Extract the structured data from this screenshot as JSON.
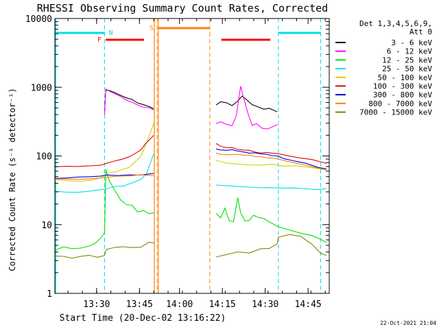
{
  "chart_data": {
    "type": "line",
    "title": "RHESSI Observing Summary Count Rates, Corrected",
    "xlabel": "Start Time (20-Dec-02 13:16:22)",
    "ylabel": "Corrected Count Rate (s⁻¹ detector⁻¹)",
    "yscale": "log",
    "ylim": [
      1,
      10000
    ],
    "xlim_minutes": [
      0,
      96
    ],
    "x_units": "minutes after 13:16:22",
    "yticks": [
      {
        "value": 1,
        "label": "1"
      },
      {
        "value": 10,
        "label": "10"
      },
      {
        "value": 100,
        "label": "100"
      },
      {
        "value": 1000,
        "label": "1000"
      },
      {
        "value": 10000,
        "label": "10000"
      }
    ],
    "xticks": [
      {
        "value": 14.6,
        "label": "13:30"
      },
      {
        "value": 29.6,
        "label": "13:45"
      },
      {
        "value": 43.6,
        "label": "14:00"
      },
      {
        "value": 58.6,
        "label": "14:15"
      },
      {
        "value": 73.6,
        "label": "14:30"
      },
      {
        "value": 88.6,
        "label": "14:45"
      }
    ],
    "legend": {
      "position": "top-right",
      "header": [
        "Det 1,3,4,5,6,9,",
        "Att 0"
      ],
      "entries": [
        {
          "label": "3 - 6 keV",
          "color": "#000000"
        },
        {
          "label": "6 - 12 keV",
          "color": "#ff00ff"
        },
        {
          "label": "12 - 25 keV",
          "color": "#00e000"
        },
        {
          "label": "25 - 50 keV",
          "color": "#00e0e0"
        },
        {
          "label": "50 - 100 keV",
          "color": "#d0d000"
        },
        {
          "label": "100 - 300 keV",
          "color": "#e00000"
        },
        {
          "label": "300 - 800 keV",
          "color": "#0000e0"
        },
        {
          "label": "800 - 7000 keV",
          "color": "#ff8000"
        },
        {
          "label": "7000 - 15000 keV",
          "color": "#808000"
        }
      ]
    },
    "annotations": {
      "N_label": "N",
      "F_label": "F",
      "S_label": "S",
      "night_bars": [
        [
          0,
          17.4
        ],
        [
          78.2,
          93.0
        ]
      ],
      "flare_bars": [
        [
          17.8,
          31.2
        ],
        [
          58.2,
          75.4
        ]
      ],
      "saa_bars": [
        [
          36.2,
          54.2
        ]
      ],
      "night_lines": [
        17.4,
        78.2,
        93.0
      ],
      "saa_lines": [
        35.8,
        54.2
      ],
      "saa_solid": [
        34.8,
        36.2
      ],
      "night_color": "#00e0e0",
      "flare_color": "#ff0000",
      "saa_color": "#ff8000"
    },
    "series": [
      {
        "name": "3 - 6 keV",
        "color": "#000000",
        "points": [
          [
            17.4,
            450
          ],
          [
            17.8,
            900
          ],
          [
            19,
            880
          ],
          [
            21,
            820
          ],
          [
            23,
            760
          ],
          [
            25,
            700
          ],
          [
            27,
            650
          ],
          [
            29,
            600
          ],
          [
            31,
            560
          ],
          [
            33,
            520
          ],
          [
            34.6,
            480
          ],
          [
            56.4,
            560
          ],
          [
            58,
            620
          ],
          [
            60,
            580
          ],
          [
            62,
            540
          ],
          [
            64,
            620
          ],
          [
            65.5,
            750
          ],
          [
            67,
            650
          ],
          [
            69,
            560
          ],
          [
            71,
            520
          ],
          [
            73,
            470
          ],
          [
            75,
            480
          ],
          [
            77.8,
            450
          ]
        ]
      },
      {
        "name": "6 - 12 keV",
        "color": "#ff00ff",
        "points": [
          [
            17.4,
            400
          ],
          [
            17.8,
            920
          ],
          [
            19,
            870
          ],
          [
            21,
            800
          ],
          [
            23,
            730
          ],
          [
            25,
            660
          ],
          [
            27,
            600
          ],
          [
            29,
            560
          ],
          [
            31,
            520
          ],
          [
            33,
            490
          ],
          [
            34.6,
            470
          ],
          [
            56.4,
            300
          ],
          [
            58,
            320
          ],
          [
            60,
            290
          ],
          [
            62,
            270
          ],
          [
            63.5,
            380
          ],
          [
            65,
            1050
          ],
          [
            66,
            700
          ],
          [
            67.5,
            420
          ],
          [
            69,
            280
          ],
          [
            70.5,
            300
          ],
          [
            72.5,
            260
          ],
          [
            74.5,
            250
          ],
          [
            77.8,
            290
          ]
        ]
      },
      {
        "name": "12 - 25 keV",
        "color": "#00e000",
        "points": [
          [
            0,
            4.5
          ],
          [
            3,
            4.8
          ],
          [
            6,
            4.5
          ],
          [
            9,
            4.6
          ],
          [
            12,
            4.8
          ],
          [
            14,
            5.0
          ],
          [
            16,
            6.5
          ],
          [
            17.4,
            8
          ],
          [
            17.8,
            60
          ],
          [
            19,
            45
          ],
          [
            21,
            30
          ],
          [
            23,
            24
          ],
          [
            25,
            21
          ],
          [
            27,
            18
          ],
          [
            29,
            16
          ],
          [
            31,
            15
          ],
          [
            33,
            15
          ],
          [
            34.6,
            15
          ],
          [
            56.4,
            14
          ],
          [
            58,
            13
          ],
          [
            59.5,
            17
          ],
          [
            61,
            12
          ],
          [
            62.5,
            11
          ],
          [
            64,
            25
          ],
          [
            65,
            15
          ],
          [
            66.5,
            11
          ],
          [
            68,
            12
          ],
          [
            69.5,
            14
          ],
          [
            71,
            13
          ],
          [
            73,
            12
          ],
          [
            75,
            11
          ],
          [
            77.8,
            10
          ],
          [
            78.2,
            9.5
          ],
          [
            82,
            8.5
          ],
          [
            86,
            7.5
          ],
          [
            90,
            6.5
          ],
          [
            93,
            6.0
          ],
          [
            95,
            5.8
          ]
        ]
      },
      {
        "name": "25 - 50 keV",
        "color": "#00e0e0",
        "points": [
          [
            0,
            30
          ],
          [
            4,
            29
          ],
          [
            8,
            30
          ],
          [
            12,
            31
          ],
          [
            16,
            32
          ],
          [
            18,
            33
          ],
          [
            21,
            35
          ],
          [
            24,
            37
          ],
          [
            27,
            40
          ],
          [
            30,
            45
          ],
          [
            32,
            55
          ],
          [
            34.6,
            110
          ],
          [
            56.4,
            37
          ],
          [
            60,
            37
          ],
          [
            64,
            36
          ],
          [
            68,
            36
          ],
          [
            72,
            35
          ],
          [
            76,
            35
          ],
          [
            80,
            35
          ],
          [
            84,
            35
          ],
          [
            88,
            34
          ],
          [
            92,
            33
          ],
          [
            95,
            33
          ]
        ]
      },
      {
        "name": "50 - 100 keV",
        "color": "#d0d000",
        "points": [
          [
            0,
            45
          ],
          [
            4,
            44
          ],
          [
            8,
            44
          ],
          [
            12,
            45
          ],
          [
            16,
            47
          ],
          [
            18,
            55
          ],
          [
            20,
            57
          ],
          [
            22,
            60
          ],
          [
            24,
            64
          ],
          [
            26,
            70
          ],
          [
            28,
            80
          ],
          [
            30,
            100
          ],
          [
            32,
            150
          ],
          [
            34.6,
            290
          ],
          [
            56.4,
            85
          ],
          [
            60,
            80
          ],
          [
            64,
            78
          ],
          [
            68,
            76
          ],
          [
            72,
            75
          ],
          [
            76,
            74
          ],
          [
            78.2,
            73
          ],
          [
            80,
            72
          ],
          [
            84,
            70
          ],
          [
            88,
            68
          ],
          [
            92,
            64
          ],
          [
            95,
            62
          ]
        ]
      },
      {
        "name": "100 - 300 keV",
        "color": "#e00000",
        "points": [
          [
            0,
            70
          ],
          [
            4,
            69
          ],
          [
            8,
            69
          ],
          [
            12,
            70
          ],
          [
            16,
            72
          ],
          [
            18,
            80
          ],
          [
            20,
            83
          ],
          [
            22,
            87
          ],
          [
            24,
            92
          ],
          [
            26,
            98
          ],
          [
            28,
            108
          ],
          [
            30,
            125
          ],
          [
            32,
            155
          ],
          [
            34.6,
            200
          ],
          [
            56.4,
            155
          ],
          [
            58,
            140
          ],
          [
            60,
            135
          ],
          [
            62,
            130
          ],
          [
            64,
            125
          ],
          [
            66,
            120
          ],
          [
            68,
            118
          ],
          [
            70,
            115
          ],
          [
            72,
            112
          ],
          [
            74,
            110
          ],
          [
            76,
            108
          ],
          [
            78.2,
            105
          ],
          [
            82,
            100
          ],
          [
            86,
            95
          ],
          [
            90,
            88
          ],
          [
            95,
            80
          ]
        ]
      },
      {
        "name": "300 - 800 keV",
        "color": "#0000e0",
        "points": [
          [
            0,
            48
          ],
          [
            4,
            48
          ],
          [
            8,
            49
          ],
          [
            12,
            49
          ],
          [
            16,
            50
          ],
          [
            18,
            52
          ],
          [
            22,
            53
          ],
          [
            26,
            53
          ],
          [
            30,
            54
          ],
          [
            34.6,
            55
          ],
          [
            56.4,
            130
          ],
          [
            58,
            125
          ],
          [
            60,
            122
          ],
          [
            62,
            120
          ],
          [
            64,
            118
          ],
          [
            66,
            115
          ],
          [
            68,
            113
          ],
          [
            70,
            110
          ],
          [
            72,
            107
          ],
          [
            74,
            105
          ],
          [
            76,
            102
          ],
          [
            78.2,
            100
          ],
          [
            80,
            92
          ],
          [
            84,
            86
          ],
          [
            88,
            78
          ],
          [
            92,
            70
          ],
          [
            95,
            65
          ]
        ]
      },
      {
        "name": "800 - 7000 keV",
        "color": "#ff8000",
        "points": [
          [
            0,
            45
          ],
          [
            4,
            45
          ],
          [
            8,
            46
          ],
          [
            12,
            46
          ],
          [
            16,
            47
          ],
          [
            18,
            49
          ],
          [
            22,
            50
          ],
          [
            26,
            51
          ],
          [
            30,
            52
          ],
          [
            34.6,
            53
          ],
          [
            56.4,
            110
          ],
          [
            58,
            108
          ],
          [
            60,
            106
          ],
          [
            62,
            105
          ],
          [
            64,
            104
          ],
          [
            66,
            102
          ],
          [
            68,
            100
          ],
          [
            70,
            98
          ],
          [
            72,
            96
          ],
          [
            74,
            94
          ],
          [
            76,
            92
          ],
          [
            78.2,
            90
          ],
          [
            80,
            85
          ],
          [
            84,
            80
          ],
          [
            88,
            74
          ],
          [
            92,
            68
          ],
          [
            95,
            62
          ]
        ]
      },
      {
        "name": "7000 - 15000 keV",
        "color": "#808000",
        "points": [
          [
            0,
            3.4
          ],
          [
            3,
            3.5
          ],
          [
            6,
            3.4
          ],
          [
            9,
            3.5
          ],
          [
            12,
            3.4
          ],
          [
            15,
            3.5
          ],
          [
            17.4,
            3.6
          ],
          [
            18,
            4.3
          ],
          [
            21,
            4.6
          ],
          [
            24,
            4.8
          ],
          [
            27,
            4.9
          ],
          [
            30,
            5.0
          ],
          [
            33,
            5.2
          ],
          [
            34.6,
            5.8
          ],
          [
            56.4,
            3.6
          ],
          [
            60,
            3.6
          ],
          [
            64,
            3.8
          ],
          [
            68,
            4.0
          ],
          [
            72,
            4.2
          ],
          [
            75,
            4.6
          ],
          [
            77.8,
            5.5
          ],
          [
            78.2,
            6.5
          ],
          [
            82,
            6.8
          ],
          [
            86,
            6.8
          ],
          [
            90,
            5.5
          ],
          [
            93,
            4.0
          ],
          [
            95,
            3.5
          ]
        ]
      }
    ],
    "timestamp": "22-Oct-2021 21:04"
  }
}
